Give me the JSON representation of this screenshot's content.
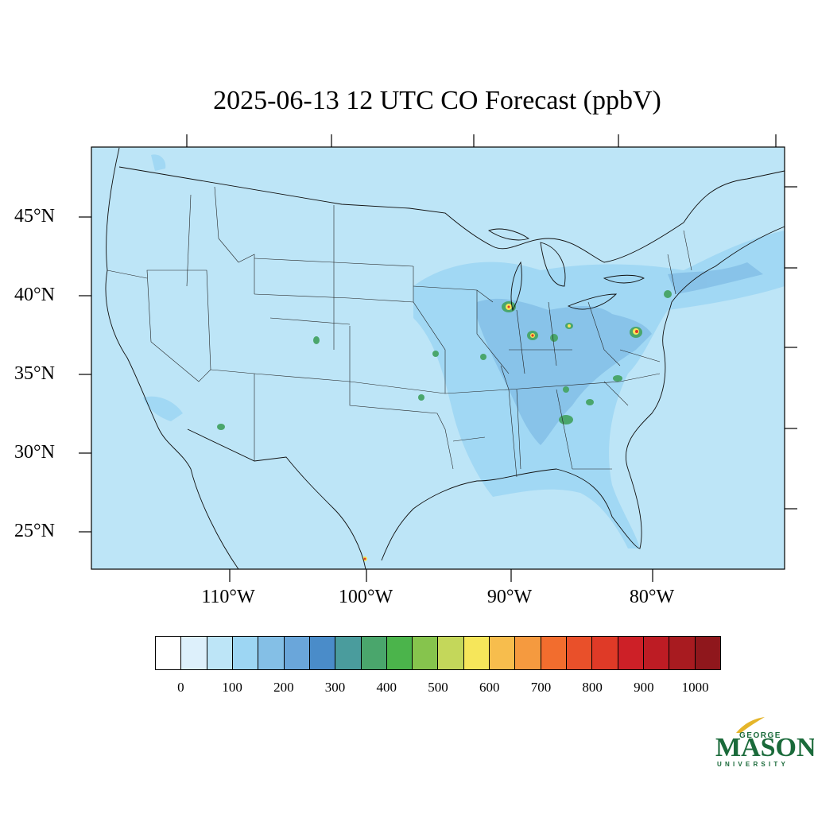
{
  "title": "2025-06-13 12 UTC CO Forecast (ppbV)",
  "lat_labels": [
    "45°N",
    "40°N",
    "35°N",
    "30°N",
    "25°N"
  ],
  "lon_labels": [
    "110°W",
    "100°W",
    "90°W",
    "80°W"
  ],
  "colorbar": {
    "colors": [
      "#ffffff",
      "#ddf0fb",
      "#bde5f7",
      "#9dd6f3",
      "#84bfe6",
      "#6aa6da",
      "#4a8cc9",
      "#4a9c9d",
      "#4aa66c",
      "#4bb44b",
      "#86c44d",
      "#c4d75a",
      "#f6e65a",
      "#f7bd4d",
      "#f59a3f",
      "#f26d2e",
      "#e9502a",
      "#df3a27",
      "#cd2027",
      "#bd1c24",
      "#a81b20",
      "#8f171c"
    ],
    "tick_labels": [
      "0",
      "100",
      "200",
      "300",
      "400",
      "500",
      "600",
      "700",
      "800",
      "900",
      "1000"
    ]
  },
  "map_colors": {
    "background": "#bde5f7",
    "elevated": "#9dd6f3",
    "moderate": "#84bfe6",
    "high": "#4aa66c",
    "hotspot_core": "#df3a27",
    "hotspot_ring": "#f6e65a"
  },
  "logo": {
    "top": "GEORGE",
    "main": "MASON",
    "bottom": "UNIVERSITY"
  }
}
